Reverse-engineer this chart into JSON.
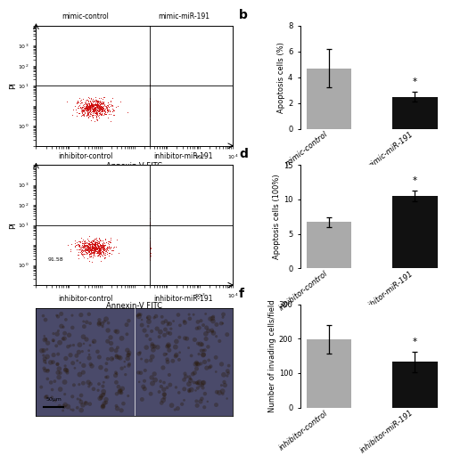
{
  "panel_b": {
    "categories": [
      "mimic-control",
      "mimic-miR-191"
    ],
    "values": [
      4.7,
      2.5
    ],
    "errors": [
      1.5,
      0.4
    ],
    "colors": [
      "#aaaaaa",
      "#111111"
    ],
    "ylabel": "Apoptosis cells (%)",
    "ylim": [
      0,
      8
    ],
    "yticks": [
      0,
      2,
      4,
      6,
      8
    ],
    "label": "b"
  },
  "panel_d": {
    "categories": [
      "inhibitor-control",
      "inhibitor-miR-191"
    ],
    "values": [
      6.7,
      10.5
    ],
    "errors": [
      0.7,
      0.8
    ],
    "colors": [
      "#aaaaaa",
      "#111111"
    ],
    "ylabel": "Apoptosis cells (100%)",
    "ylim": [
      0,
      15
    ],
    "yticks": [
      0,
      5,
      10,
      15
    ],
    "label": "d"
  },
  "panel_f": {
    "categories": [
      "inhibitor-control",
      "inhibitor-miR-191"
    ],
    "values": [
      198,
      133
    ],
    "errors": [
      42,
      30
    ],
    "colors": [
      "#aaaaaa",
      "#111111"
    ],
    "ylabel": "Number of invading cells/field",
    "ylim": [
      0,
      300
    ],
    "yticks": [
      0,
      100,
      200,
      300
    ],
    "label": "f"
  },
  "bar_width": 0.52,
  "tick_fontsize": 6.0,
  "ylabel_fontsize": 6.0,
  "panel_label_fontsize": 10,
  "scatter_color": "#cc0000",
  "flow_top_titles": [
    "mimic-control",
    "mimic-miR-191"
  ],
  "flow_mid_titles": [
    "inhibitor-control",
    "inhibitor-miR-191"
  ],
  "micro_titles": [
    "inhibitor-control",
    "inhibitor-miR-191"
  ],
  "scale_bar_label": "50μm",
  "micro_bg_color": "#4a4a6a",
  "micro_fg_color": "#3a3a5a"
}
